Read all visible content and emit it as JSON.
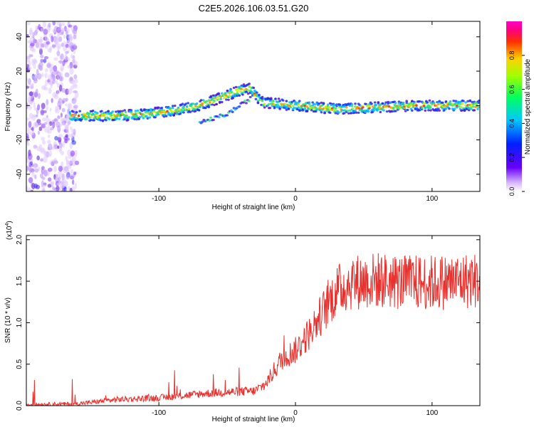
{
  "title": "C2E5.2026.106.03.51.G20",
  "colors": {
    "line": "#e8302c",
    "ridge_stops": [
      "#5a0fcf",
      "#1e3cff",
      "#00d0ff",
      "#30e070",
      "#f0f000",
      "#ff2020"
    ]
  },
  "chart_data": [
    {
      "type": "heatmap",
      "xlabel": "Height of straight line (km)",
      "ylabel": "Frequency (Hz)",
      "xlim": [
        -197,
        135
      ],
      "ylim": [
        -50,
        49
      ],
      "xticks": [
        -100,
        0,
        100
      ],
      "xtick_labels": [
        "-100",
        "0",
        "100"
      ],
      "yticks": [
        -40,
        -20,
        0,
        20,
        40
      ],
      "ytick_labels": [
        "-40",
        "-20",
        "0",
        "20",
        "40"
      ],
      "ridge": {
        "description_points_x": [
          -160,
          -130,
          -110,
          -90,
          -70,
          -50,
          -40,
          -33,
          -25,
          0,
          30,
          60,
          90,
          130
        ],
        "description_points_freq": [
          -6,
          -6,
          -5,
          -3,
          0,
          6,
          9,
          10,
          2,
          0,
          -2,
          -1,
          0,
          0
        ]
      },
      "colorbar": {
        "label": "Normalized spectral amplitude",
        "range": [
          0,
          1
        ],
        "ticks": [
          0.0,
          0.2,
          0.4,
          0.6,
          0.8
        ],
        "tick_labels": [
          "0.0",
          "0.2",
          "0.4",
          "0.6",
          "0.8"
        ]
      }
    },
    {
      "type": "line",
      "xlabel": "Height of straight line (km)",
      "ylabel": "SNR (10 * v/v)",
      "y_multiplier": "(x10",
      "y_multiplier_exp": "4",
      "y_multiplier_close": ")",
      "xlim": [
        -197,
        135
      ],
      "ylim": [
        0,
        2.05
      ],
      "xticks": [
        -100,
        0,
        100
      ],
      "xtick_labels": [
        "-100",
        "0",
        "100"
      ],
      "yticks": [
        0,
        0.5,
        1.0,
        1.5,
        2.0
      ],
      "ytick_labels": [
        "0.0",
        "0.5",
        "1.0",
        "1.5",
        "2.0"
      ],
      "trend_x": [
        -197,
        -160,
        -130,
        -100,
        -60,
        -30,
        -22,
        -10,
        0,
        10,
        20,
        30,
        40,
        60,
        80,
        100,
        135
      ],
      "trend_y": [
        0.01,
        0.02,
        0.07,
        0.09,
        0.15,
        0.17,
        0.25,
        0.55,
        0.65,
        0.85,
        1.1,
        1.35,
        1.45,
        1.48,
        1.45,
        1.45,
        1.48
      ]
    }
  ]
}
